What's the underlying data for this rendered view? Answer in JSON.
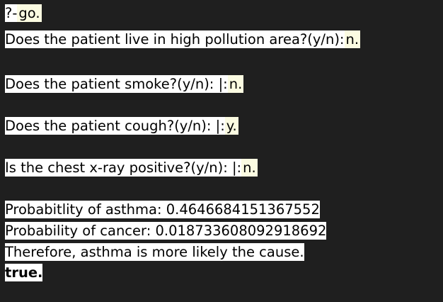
{
  "terminal": {
    "prompt": "?- ",
    "query": "go.",
    "questions": [
      {
        "text": "Does the patient live in high pollution area?(y/n): ",
        "answer": "n."
      },
      {
        "text": "Does the patient smoke?(y/n): |: ",
        "answer": "n."
      },
      {
        "text": "Does the patient cough?(y/n): |: ",
        "answer": "y."
      },
      {
        "text": "Is the chest x-ray positive?(y/n): |: ",
        "answer": "n."
      }
    ],
    "results": [
      "Probabitlity of asthma: 0.4646684151367552",
      "Probability of cancer: 0.018733608092918692",
      "Therefore, asthma is more likely the cause."
    ],
    "final": "true."
  }
}
